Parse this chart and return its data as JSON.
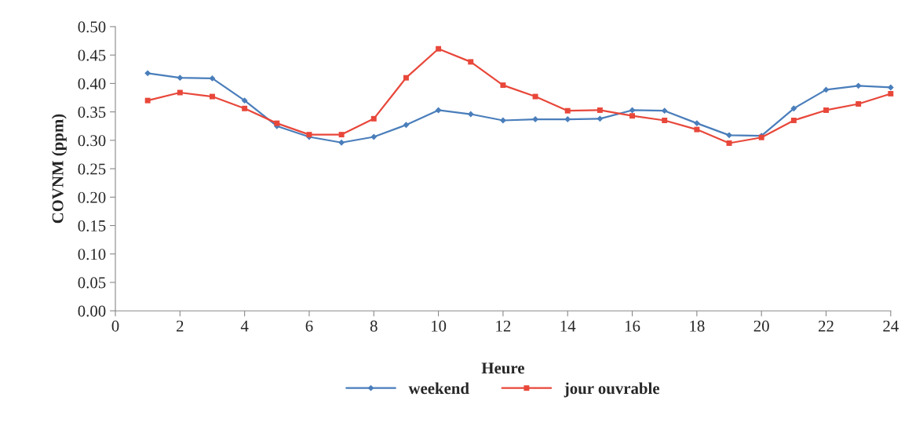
{
  "chart_data": {
    "type": "line",
    "xlabel": "Heure",
    "ylabel": "COVNM (ppm)",
    "x": [
      1,
      2,
      3,
      4,
      5,
      6,
      7,
      8,
      9,
      10,
      11,
      12,
      13,
      14,
      15,
      16,
      17,
      18,
      19,
      20,
      21,
      22,
      23,
      24
    ],
    "series": [
      {
        "name": "weekend",
        "color": "#4a7ebb",
        "marker": "diamond",
        "values": [
          0.418,
          0.41,
          0.409,
          0.37,
          0.325,
          0.306,
          0.296,
          0.306,
          0.327,
          0.353,
          0.346,
          0.335,
          0.337,
          0.337,
          0.338,
          0.353,
          0.352,
          0.33,
          0.309,
          0.308,
          0.356,
          0.389,
          0.396,
          0.393
        ]
      },
      {
        "name": "jour ouvrable",
        "color": "#e8473a",
        "marker": "square",
        "values": [
          0.37,
          0.384,
          0.377,
          0.356,
          0.33,
          0.31,
          0.31,
          0.338,
          0.41,
          0.461,
          0.438,
          0.397,
          0.377,
          0.352,
          0.353,
          0.343,
          0.335,
          0.319,
          0.295,
          0.305,
          0.335,
          0.353,
          0.364,
          0.382
        ]
      }
    ],
    "xlim": [
      0,
      24
    ],
    "xticks": [
      0,
      2,
      4,
      6,
      8,
      10,
      12,
      14,
      16,
      18,
      20,
      22,
      24
    ],
    "ylim": [
      0,
      0.5
    ],
    "yticks": [
      {
        "value": 0,
        "label": "0.00"
      },
      {
        "value": 0.05,
        "label": "0.05"
      },
      {
        "value": 0.1,
        "label": "0.10"
      },
      {
        "value": 0.15,
        "label": "0.15"
      },
      {
        "value": 0.2,
        "label": "0.20"
      },
      {
        "value": 0.25,
        "label": "0.25"
      },
      {
        "value": 0.3,
        "label": "0.30"
      },
      {
        "value": 0.35,
        "label": "0.35"
      },
      {
        "value": 0.4,
        "label": "0.40"
      },
      {
        "value": 0.45,
        "label": "0.45"
      },
      {
        "value": 0.5,
        "label": "0.50"
      }
    ],
    "grid": false,
    "legend": "bottom",
    "line_style": "solid"
  }
}
